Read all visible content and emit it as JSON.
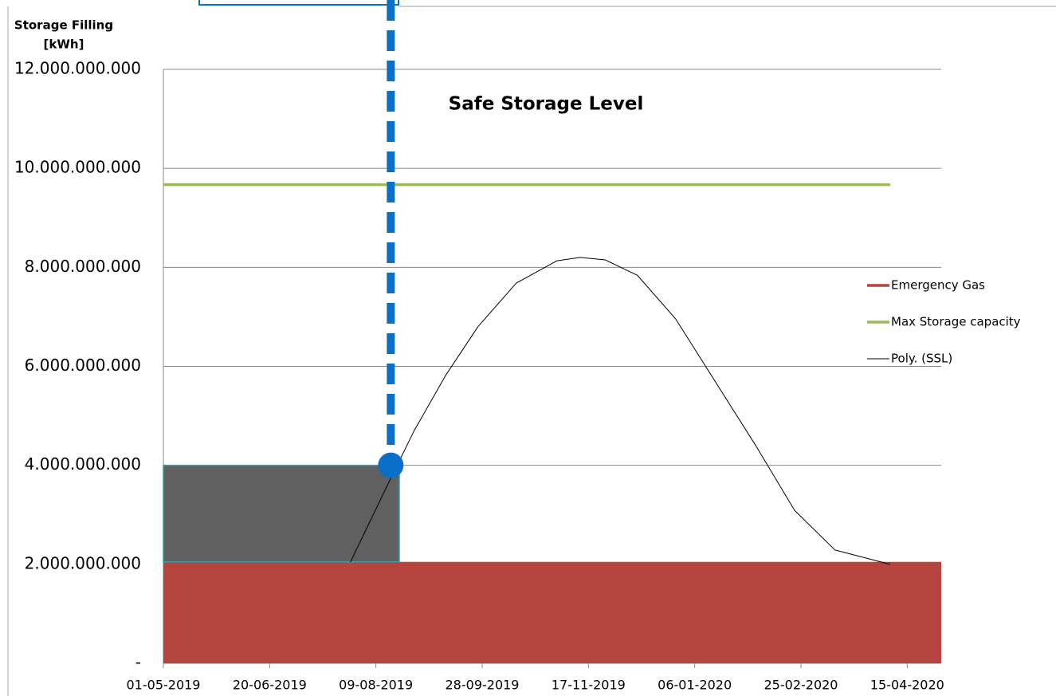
{
  "chart_data": {
    "type": "line",
    "y_axis_label": [
      "Storage Filling",
      "[kWh]"
    ],
    "annotation": "Safe Storage Level",
    "xlim": [
      "01-05-2019",
      "01-05-2020"
    ],
    "xticks": [
      "01-05-2019",
      "20-06-2019",
      "09-08-2019",
      "28-09-2019",
      "17-11-2019",
      "06-01-2020",
      "25-02-2020",
      "15-04-2020"
    ],
    "ylim": [
      0,
      12000000000
    ],
    "yticks": [
      {
        "value": 0,
        "label": "-"
      },
      {
        "value": 2000000000,
        "label": "2.000.000.000"
      },
      {
        "value": 4000000000,
        "label": "4.000.000.000"
      },
      {
        "value": 6000000000,
        "label": "6.000.000.000"
      },
      {
        "value": 8000000000,
        "label": "8.000.000.000"
      },
      {
        "value": 10000000000,
        "label": "10.000.000.000"
      },
      {
        "value": 12000000000,
        "label": "12.000.000.000"
      }
    ],
    "grid": true,
    "legend": "right",
    "series": [
      {
        "name": "Emergency Gas",
        "kind": "area",
        "color": "#b5443f",
        "x": [
          "01-05-2019",
          "01-05-2020"
        ],
        "values": [
          2050000000,
          2050000000
        ]
      },
      {
        "name": "Max Storage capacity",
        "kind": "line",
        "color": "#9bbb59",
        "x": [
          "01-05-2019",
          "07-04-2020"
        ],
        "values": [
          9670000000,
          9670000000
        ]
      },
      {
        "name": "Poly. (SSL)",
        "kind": "line",
        "color": "#000000",
        "x": [
          "28-07-2019",
          "16-08-2019",
          "27-08-2019",
          "11-09-2019",
          "26-09-2019",
          "14-10-2019",
          "02-11-2019",
          "13-11-2019",
          "25-11-2019",
          "10-12-2019",
          "28-12-2019",
          "16-01-2020",
          "04-02-2020",
          "22-02-2020",
          "12-03-2020",
          "07-04-2020"
        ],
        "values": [
          2045000000,
          3740000000,
          4700000000,
          5830000000,
          6800000000,
          7680000000,
          8130000000,
          8200000000,
          8150000000,
          7840000000,
          6960000000,
          5670000000,
          4380000000,
          3090000000,
          2290000000,
          2000000000
        ]
      }
    ],
    "highlight": {
      "x_end": "20-08-2019",
      "from": 2050000000,
      "to": 4000000000,
      "color": "#606060"
    },
    "marker": {
      "x": "16-08-2019",
      "value": 4000000000,
      "color": "#0a6fc9"
    }
  }
}
